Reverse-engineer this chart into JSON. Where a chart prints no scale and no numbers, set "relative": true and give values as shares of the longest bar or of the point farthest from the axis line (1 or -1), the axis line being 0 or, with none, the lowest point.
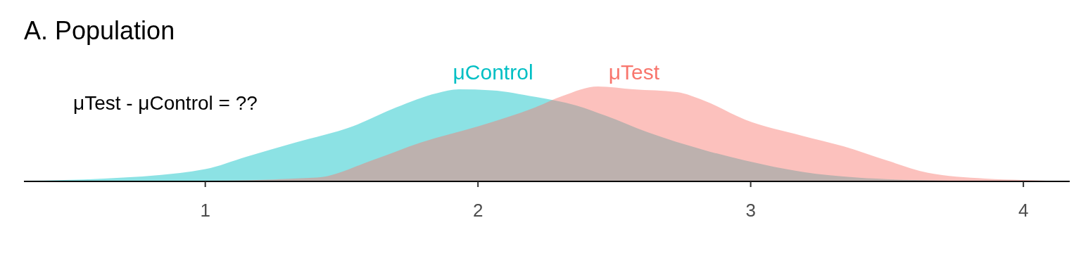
{
  "chart_data": {
    "type": "area",
    "title": "A. Population",
    "relative": true,
    "xlim": [
      0.335,
      4.17
    ],
    "xticks": [
      1,
      2,
      3,
      4
    ],
    "annotations": [
      "μTest - μControl = ??"
    ],
    "series": [
      {
        "name": "μControl",
        "color": "#00bfc4",
        "x": [
          0.335,
          0.63,
          1,
          1.15,
          1.33,
          1.54,
          1.7,
          1.85,
          1.93,
          2.05,
          2.21,
          2.36,
          2.47,
          2.62,
          2.83,
          2.98,
          3.19,
          3.39,
          3.6,
          3.86,
          4.17
        ],
        "values": [
          0.007,
          0.03,
          0.13,
          0.26,
          0.41,
          0.58,
          0.78,
          0.93,
          0.97,
          0.96,
          0.89,
          0.8,
          0.69,
          0.52,
          0.33,
          0.22,
          0.1,
          0.04,
          0.015,
          0.004,
          0
        ]
      },
      {
        "name": "μTest",
        "color": "#f8766d",
        "x": [
          0.335,
          1,
          1.41,
          1.61,
          1.79,
          2,
          2.21,
          2.31,
          2.44,
          2.57,
          2.73,
          2.83,
          2.98,
          3.19,
          3.34,
          3.5,
          3.65,
          3.86,
          4,
          4.17
        ],
        "values": [
          0,
          0.007,
          0.04,
          0.22,
          0.41,
          0.58,
          0.78,
          0.9,
          1,
          0.97,
          0.94,
          0.85,
          0.65,
          0.48,
          0.37,
          0.22,
          0.09,
          0.03,
          0.015,
          0
        ]
      }
    ]
  }
}
